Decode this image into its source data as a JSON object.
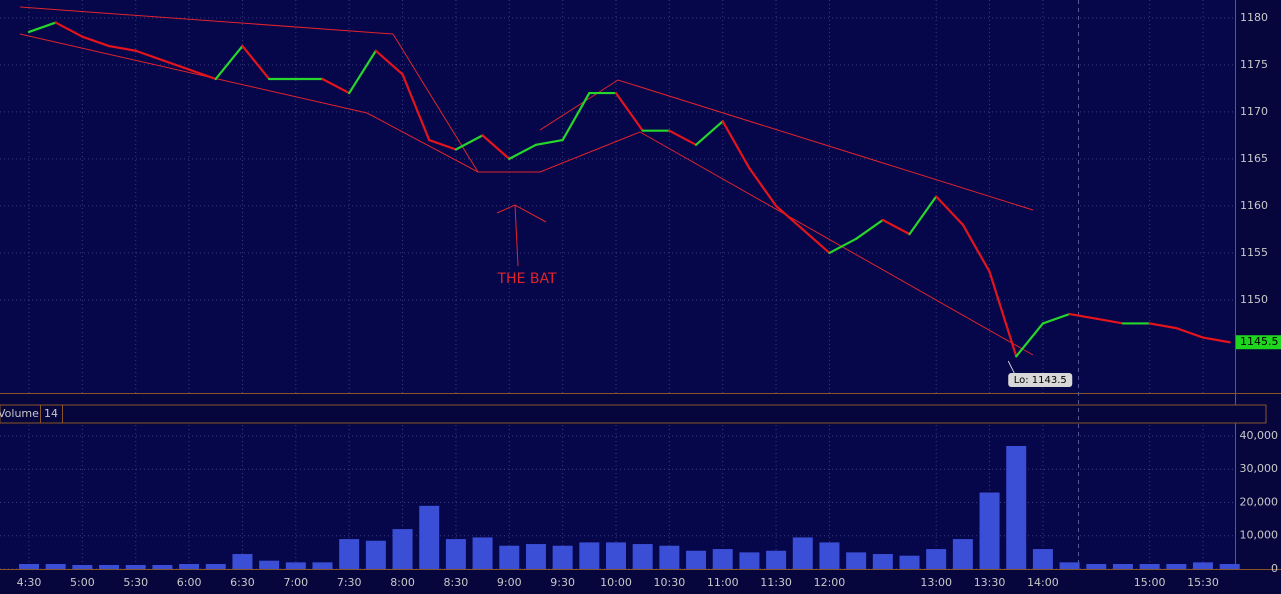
{
  "chart_data": [
    {
      "type": "line",
      "values": [
        1178.5,
        1179.5,
        1178,
        1177,
        1176.5,
        1175.5,
        1174.5,
        1173.5,
        1177,
        1173.5,
        1173.5,
        1173.5,
        1172,
        1176.5,
        1174,
        1167,
        1166,
        1167.5,
        1165,
        1166.5,
        1167,
        1172,
        1172,
        1168,
        1168,
        1166.5,
        1169,
        1164,
        1160,
        1157.5,
        1155,
        1156.5,
        1158.5,
        1157,
        1161,
        1158,
        1153,
        1144,
        1147.5,
        1148.5,
        1148,
        1147.5,
        1147.5,
        1147,
        1146,
        1145.5
      ],
      "up_color": "#27d62b",
      "down_color": "#e3141c",
      "ylim": [
        1140.1,
        1181.9
      ],
      "yticks": [
        1150,
        1155,
        1160,
        1165,
        1170,
        1175,
        1180
      ],
      "grid": true,
      "annotations": [
        "THE BAT"
      ],
      "low": 1143.5,
      "low_label": "Lo: 1143.5",
      "last_price": 1145.5
    },
    {
      "type": "bar",
      "title": "Volume",
      "period": 14,
      "categories": [
        "4:30",
        null,
        "5:00",
        null,
        "5:30",
        null,
        "6:00",
        null,
        "6:30",
        null,
        "7:00",
        null,
        "7:30",
        null,
        "8:00",
        null,
        "8:30",
        null,
        "9:00",
        null,
        "9:30",
        null,
        "10:00",
        null,
        "10:30",
        null,
        "11:00",
        null,
        "11:30",
        null,
        "12:00",
        null,
        null,
        null,
        "13:00",
        null,
        "13:30",
        null,
        "14:00",
        null,
        null,
        null,
        "15:00",
        null,
        "15:30",
        null
      ],
      "values": [
        1500,
        1500,
        1200,
        1200,
        1200,
        1200,
        1500,
        1500,
        4500,
        2500,
        2000,
        2000,
        9000,
        8500,
        12000,
        19000,
        9000,
        9500,
        7000,
        7500,
        7000,
        8000,
        8000,
        7500,
        7000,
        5500,
        6000,
        5000,
        5500,
        9500,
        8000,
        5000,
        4500,
        4000,
        6000,
        9000,
        23000,
        37000,
        6000,
        2000,
        1500,
        1500,
        1500,
        1500,
        2000,
        1500
      ],
      "color": "#3b4ed6",
      "ylim": [
        0,
        43300
      ],
      "yticks": [
        0,
        {
          "value": 10000,
          "label": "10,000"
        },
        {
          "value": 20000,
          "label": "20,000"
        },
        {
          "value": 30000,
          "label": "30,000"
        },
        {
          "value": 40000,
          "label": "40,000"
        }
      ],
      "grid": true
    }
  ]
}
